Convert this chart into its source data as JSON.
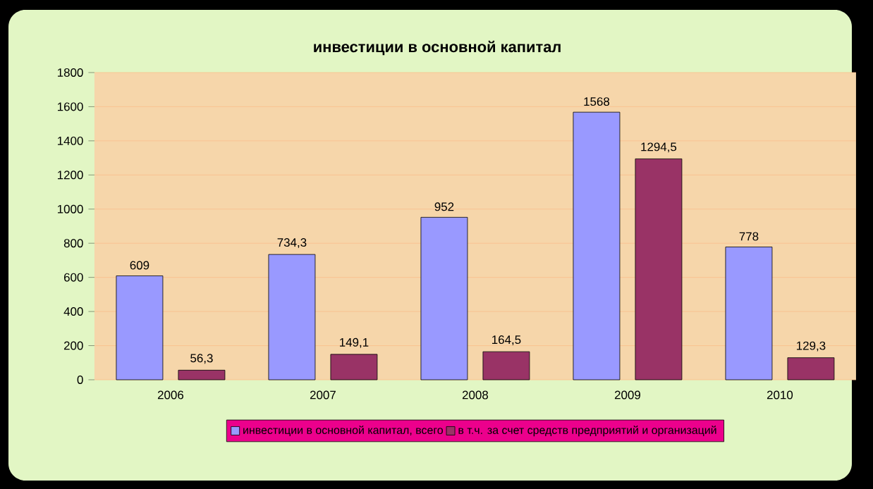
{
  "chart_data": {
    "type": "bar",
    "title": "инвестиции в основной капитал",
    "categories": [
      "2006",
      "2007",
      "2008",
      "2009",
      "2010"
    ],
    "series": [
      {
        "name": "инвестиции в основной капитал, всего",
        "color": "#9999ff",
        "values": [
          609,
          734.3,
          952,
          1568,
          778
        ],
        "value_labels": [
          "609",
          "734,3",
          "952",
          "1568",
          "778"
        ]
      },
      {
        "name": "в т.ч. за счет средств предприятий и организаций",
        "color": "#993366",
        "values": [
          56.3,
          149.1,
          164.5,
          1294.5,
          129.3
        ],
        "value_labels": [
          "56,3",
          "149,1",
          "164,5",
          "1294,5",
          "129,3"
        ]
      }
    ],
    "ylim": [
      0,
      1800
    ],
    "yticks": [
      0,
      200,
      400,
      600,
      800,
      1000,
      1200,
      1400,
      1600,
      1800
    ],
    "grid": "y",
    "legend": "bottom"
  }
}
